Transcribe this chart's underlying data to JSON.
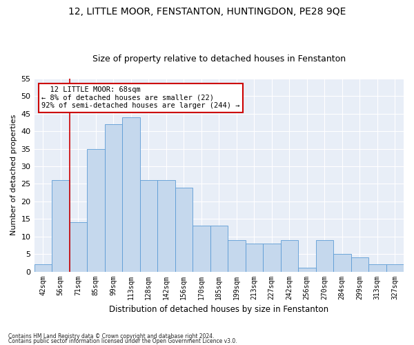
{
  "title": "12, LITTLE MOOR, FENSTANTON, HUNTINGDON, PE28 9QE",
  "subtitle": "Size of property relative to detached houses in Fenstanton",
  "xlabel": "Distribution of detached houses by size in Fenstanton",
  "ylabel": "Number of detached properties",
  "categories": [
    "42sqm",
    "56sqm",
    "71sqm",
    "85sqm",
    "99sqm",
    "113sqm",
    "128sqm",
    "142sqm",
    "156sqm",
    "170sqm",
    "185sqm",
    "199sqm",
    "213sqm",
    "227sqm",
    "242sqm",
    "256sqm",
    "270sqm",
    "284sqm",
    "299sqm",
    "313sqm",
    "327sqm"
  ],
  "values": [
    2,
    26,
    14,
    35,
    42,
    44,
    26,
    26,
    24,
    13,
    13,
    9,
    8,
    8,
    9,
    1,
    9,
    5,
    4,
    2,
    2
  ],
  "bar_color": "#c5d8ed",
  "bar_edge_color": "#5b9bd5",
  "marker_color": "#cc0000",
  "annotation_title": "12 LITTLE MOOR: 68sqm",
  "annotation_line1": "← 8% of detached houses are smaller (22)",
  "annotation_line2": "92% of semi-detached houses are larger (244) →",
  "annotation_box_color": "#ffffff",
  "annotation_box_edge": "#cc0000",
  "ylim": [
    0,
    55
  ],
  "yticks": [
    0,
    5,
    10,
    15,
    20,
    25,
    30,
    35,
    40,
    45,
    50,
    55
  ],
  "footnote1": "Contains HM Land Registry data © Crown copyright and database right 2024.",
  "footnote2": "Contains public sector information licensed under the Open Government Licence v3.0.",
  "fig_bg_color": "#ffffff",
  "ax_bg_color": "#e8eef7",
  "grid_color": "#ffffff",
  "title_fontsize": 10,
  "subtitle_fontsize": 9
}
